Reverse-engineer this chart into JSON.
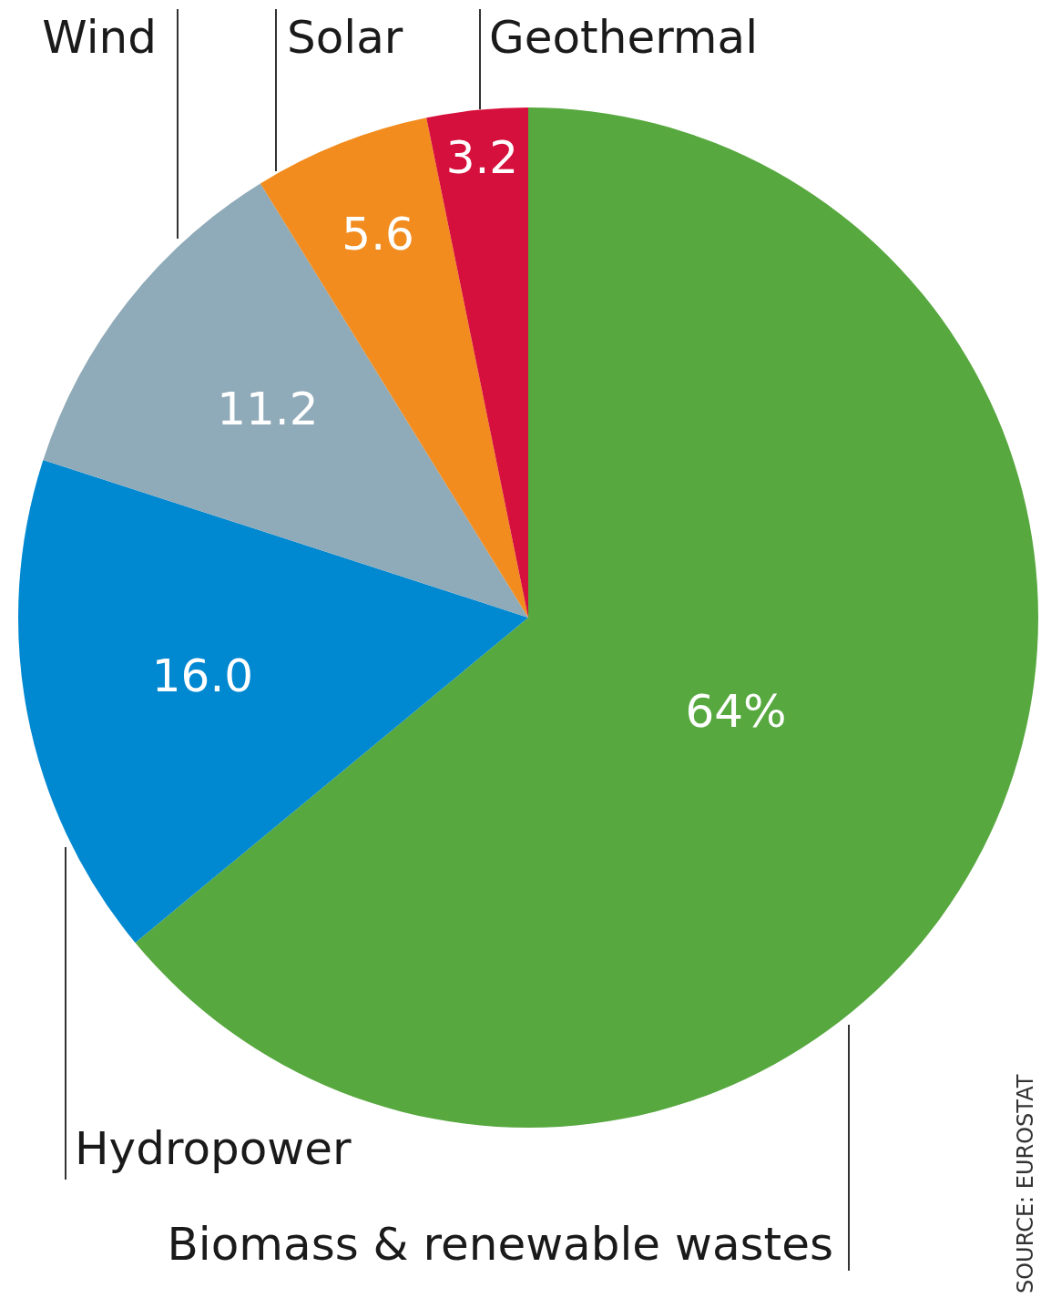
{
  "chart_data": {
    "type": "pie",
    "categories": [
      "Biomass & renewable wastes",
      "Hydropower",
      "Wind",
      "Solar",
      "Geothermal"
    ],
    "values": [
      64,
      16.0,
      11.2,
      5.6,
      3.2
    ],
    "colors": [
      "#57a83f",
      "#0088d1",
      "#8faab8",
      "#f28c1f",
      "#d6103c"
    ],
    "value_labels": [
      "64%",
      "16.0",
      "11.2",
      "5.6",
      "3.2"
    ],
    "annotations": [
      "SOURCE: EUROSTAT"
    ]
  }
}
